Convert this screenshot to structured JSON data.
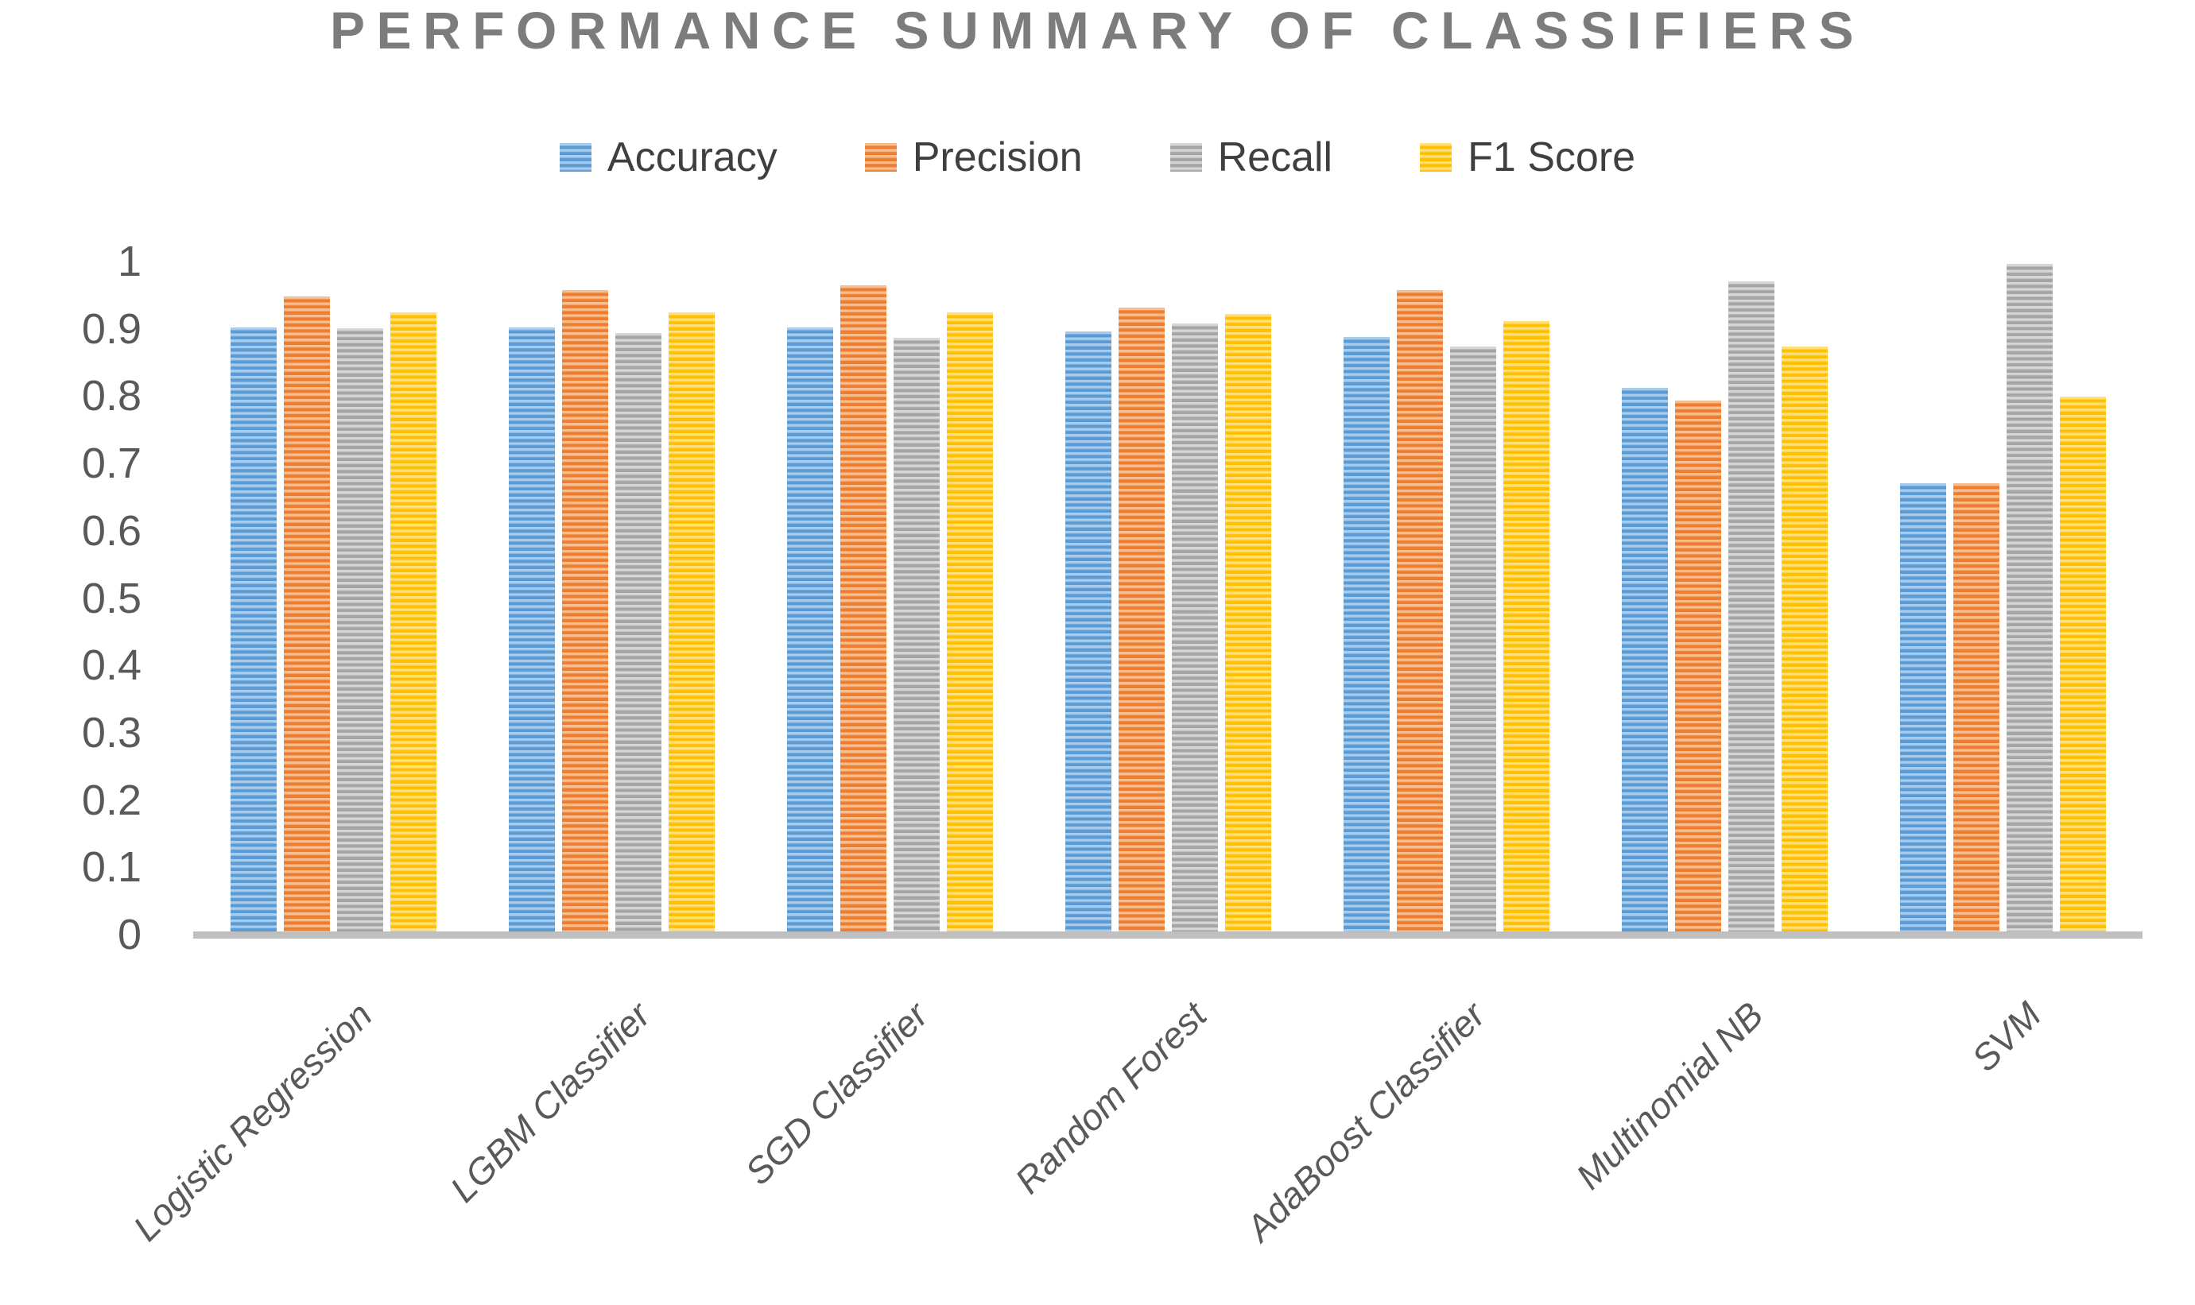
{
  "title": "PERFORMANCE SUMMARY OF CLASSIFIERS",
  "colors": {
    "background": "#FFFFFF",
    "title_text": "#7C7C7C",
    "axis_line": "#BFBFBF",
    "tick_label_text": "#595959",
    "category_label_text": "#595959",
    "legend_text": "#3F3F3F"
  },
  "chart_data": {
    "type": "bar",
    "title": "PERFORMANCE SUMMARY OF CLASSIFIERS",
    "xlabel": "",
    "ylabel": "",
    "categories": [
      "Logistic Regression",
      "LGBM Classifier",
      "SGD Classifier",
      "Random Forest",
      "AdaBoost Classifier",
      "Multinomial NB",
      "SVM"
    ],
    "series": [
      {
        "name": "Accuracy",
        "color": "#5B9BD5",
        "tint": "#A9CCEC",
        "values": [
          0.902,
          0.902,
          0.902,
          0.896,
          0.888,
          0.812,
          0.671
        ]
      },
      {
        "name": "Precision",
        "color": "#ED7D31",
        "tint": "#F8BE8F",
        "values": [
          0.948,
          0.957,
          0.964,
          0.932,
          0.957,
          0.793,
          0.671
        ]
      },
      {
        "name": "Recall",
        "color": "#A5A5A5",
        "tint": "#D6D6D6",
        "values": [
          0.901,
          0.894,
          0.887,
          0.908,
          0.874,
          0.97,
          0.997
        ]
      },
      {
        "name": "F1 Score",
        "color": "#FFC000",
        "tint": "#FFDF80",
        "values": [
          0.925,
          0.925,
          0.925,
          0.922,
          0.911,
          0.874,
          0.799
        ]
      }
    ],
    "ylim": [
      0,
      1
    ],
    "yticks": [
      "0",
      "0.1",
      "0.2",
      "0.3",
      "0.4",
      "0.5",
      "0.6",
      "0.7",
      "0.8",
      "0.9",
      "1"
    ],
    "legend_position": "top",
    "grid": false,
    "bar_texture": "horizontal-stripes"
  }
}
